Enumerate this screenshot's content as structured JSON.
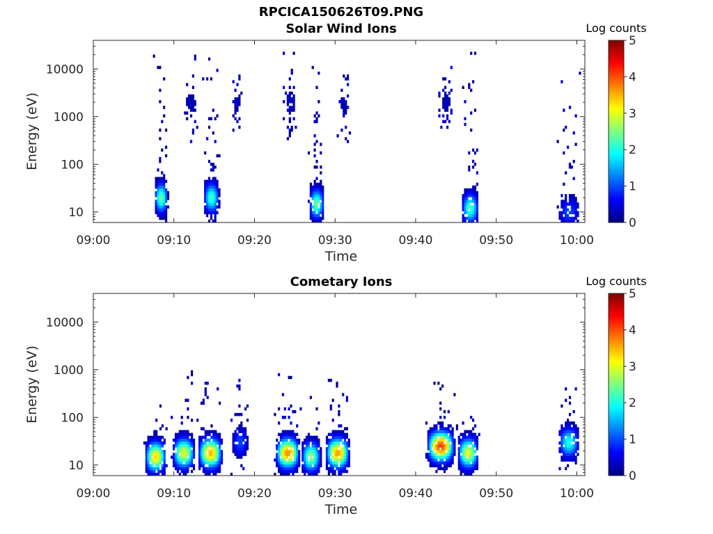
{
  "figure": {
    "title": "RPCICA150626T09.PNG"
  },
  "colormap": {
    "name": "jet",
    "stops": [
      "#00007f",
      "#0000ff",
      "#007fff",
      "#00ffff",
      "#7fff7f",
      "#ffff00",
      "#ff7f00",
      "#ff0000",
      "#7f0000"
    ]
  },
  "chart_data": [
    {
      "type": "heatmap",
      "title": "Solar Wind Ions",
      "xlabel": "Time",
      "ylabel": "Energy (eV)",
      "y_scale": "log",
      "xlim": [
        "09:00",
        "10:01"
      ],
      "ylim": [
        6,
        40000
      ],
      "x_ticks": [
        "09:00",
        "09:10",
        "09:20",
        "09:30",
        "09:40",
        "09:50",
        "10:00"
      ],
      "y_ticks": [
        "10",
        "100",
        "1000",
        "10000"
      ],
      "colorbar": {
        "label": "Log counts",
        "range": [
          0,
          5
        ],
        "ticks": [
          "0",
          "1",
          "2",
          "3",
          "4",
          "5"
        ]
      },
      "bursts": [
        {
          "t_start_min": 7.4,
          "t_end_min": 9.2,
          "e_min_ev": 6,
          "e_max_ev": 22000,
          "peak_log_counts": 2.4,
          "peak_energy_ev": 20
        },
        {
          "t_start_min": 11.0,
          "t_end_min": 13.0,
          "e_min_ev": 300,
          "e_max_ev": 22000,
          "peak_log_counts": 0.3,
          "peak_energy_ev": 2000
        },
        {
          "t_start_min": 13.5,
          "t_end_min": 15.6,
          "e_min_ev": 6,
          "e_max_ev": 24000,
          "peak_log_counts": 2.2,
          "peak_energy_ev": 20
        },
        {
          "t_start_min": 17.0,
          "t_end_min": 18.6,
          "e_min_ev": 500,
          "e_max_ev": 8000,
          "peak_log_counts": 0.3,
          "peak_energy_ev": 2000
        },
        {
          "t_start_min": 23.5,
          "t_end_min": 25.2,
          "e_min_ev": 300,
          "e_max_ev": 24000,
          "peak_log_counts": 0.4,
          "peak_energy_ev": 2000
        },
        {
          "t_start_min": 26.6,
          "t_end_min": 28.6,
          "e_min_ev": 6,
          "e_max_ev": 32000,
          "peak_log_counts": 2.4,
          "peak_energy_ev": 15
        },
        {
          "t_start_min": 30.2,
          "t_end_min": 31.8,
          "e_min_ev": 300,
          "e_max_ev": 12000,
          "peak_log_counts": 0.3,
          "peak_energy_ev": 2000
        },
        {
          "t_start_min": 42.8,
          "t_end_min": 44.5,
          "e_min_ev": 400,
          "e_max_ev": 12000,
          "peak_log_counts": 0.3,
          "peak_energy_ev": 2000
        },
        {
          "t_start_min": 45.5,
          "t_end_min": 47.8,
          "e_min_ev": 6,
          "e_max_ev": 30000,
          "peak_log_counts": 2.2,
          "peak_energy_ev": 12
        },
        {
          "t_start_min": 57.5,
          "t_end_min": 60.3,
          "e_min_ev": 6,
          "e_max_ev": 20000,
          "peak_log_counts": 1.0,
          "peak_energy_ev": 10
        }
      ]
    },
    {
      "type": "heatmap",
      "title": "Cometary Ions",
      "xlabel": "Time",
      "ylabel": "Energy (eV)",
      "y_scale": "log",
      "xlim": [
        "09:00",
        "10:01"
      ],
      "ylim": [
        6,
        40000
      ],
      "x_ticks": [
        "09:00",
        "09:10",
        "09:20",
        "09:30",
        "09:40",
        "09:50",
        "10:00"
      ],
      "y_ticks": [
        "10",
        "100",
        "1000",
        "10000"
      ],
      "colorbar": {
        "label": "Log counts",
        "range": [
          0,
          5
        ],
        "ticks": [
          "0",
          "1",
          "2",
          "3",
          "4",
          "5"
        ]
      },
      "bursts": [
        {
          "t_start_min": 6.2,
          "t_end_min": 9.0,
          "e_min_ev": 6,
          "e_max_ev": 200,
          "peak_log_counts": 3.3,
          "peak_energy_ev": 15
        },
        {
          "t_start_min": 9.6,
          "t_end_min": 12.6,
          "e_min_ev": 6,
          "e_max_ev": 1000,
          "peak_log_counts": 3.0,
          "peak_energy_ev": 18
        },
        {
          "t_start_min": 12.8,
          "t_end_min": 16.0,
          "e_min_ev": 6,
          "e_max_ev": 600,
          "peak_log_counts": 3.5,
          "peak_energy_ev": 18
        },
        {
          "t_start_min": 17.0,
          "t_end_min": 19.2,
          "e_min_ev": 6,
          "e_max_ev": 1000,
          "peak_log_counts": 1.0,
          "peak_energy_ev": 30
        },
        {
          "t_start_min": 22.4,
          "t_end_min": 25.6,
          "e_min_ev": 6,
          "e_max_ev": 800,
          "peak_log_counts": 3.7,
          "peak_energy_ev": 18
        },
        {
          "t_start_min": 25.6,
          "t_end_min": 28.2,
          "e_min_ev": 6,
          "e_max_ev": 300,
          "peak_log_counts": 2.6,
          "peak_energy_ev": 15
        },
        {
          "t_start_min": 28.6,
          "t_end_min": 31.8,
          "e_min_ev": 6,
          "e_max_ev": 700,
          "peak_log_counts": 3.6,
          "peak_energy_ev": 18
        },
        {
          "t_start_min": 41.2,
          "t_end_min": 44.8,
          "e_min_ev": 6,
          "e_max_ev": 800,
          "peak_log_counts": 4.1,
          "peak_energy_ev": 25
        },
        {
          "t_start_min": 45.0,
          "t_end_min": 47.8,
          "e_min_ev": 6,
          "e_max_ev": 150,
          "peak_log_counts": 3.0,
          "peak_energy_ev": 18
        },
        {
          "t_start_min": 57.5,
          "t_end_min": 60.3,
          "e_min_ev": 6,
          "e_max_ev": 400,
          "peak_log_counts": 2.0,
          "peak_energy_ev": 30
        }
      ]
    }
  ]
}
